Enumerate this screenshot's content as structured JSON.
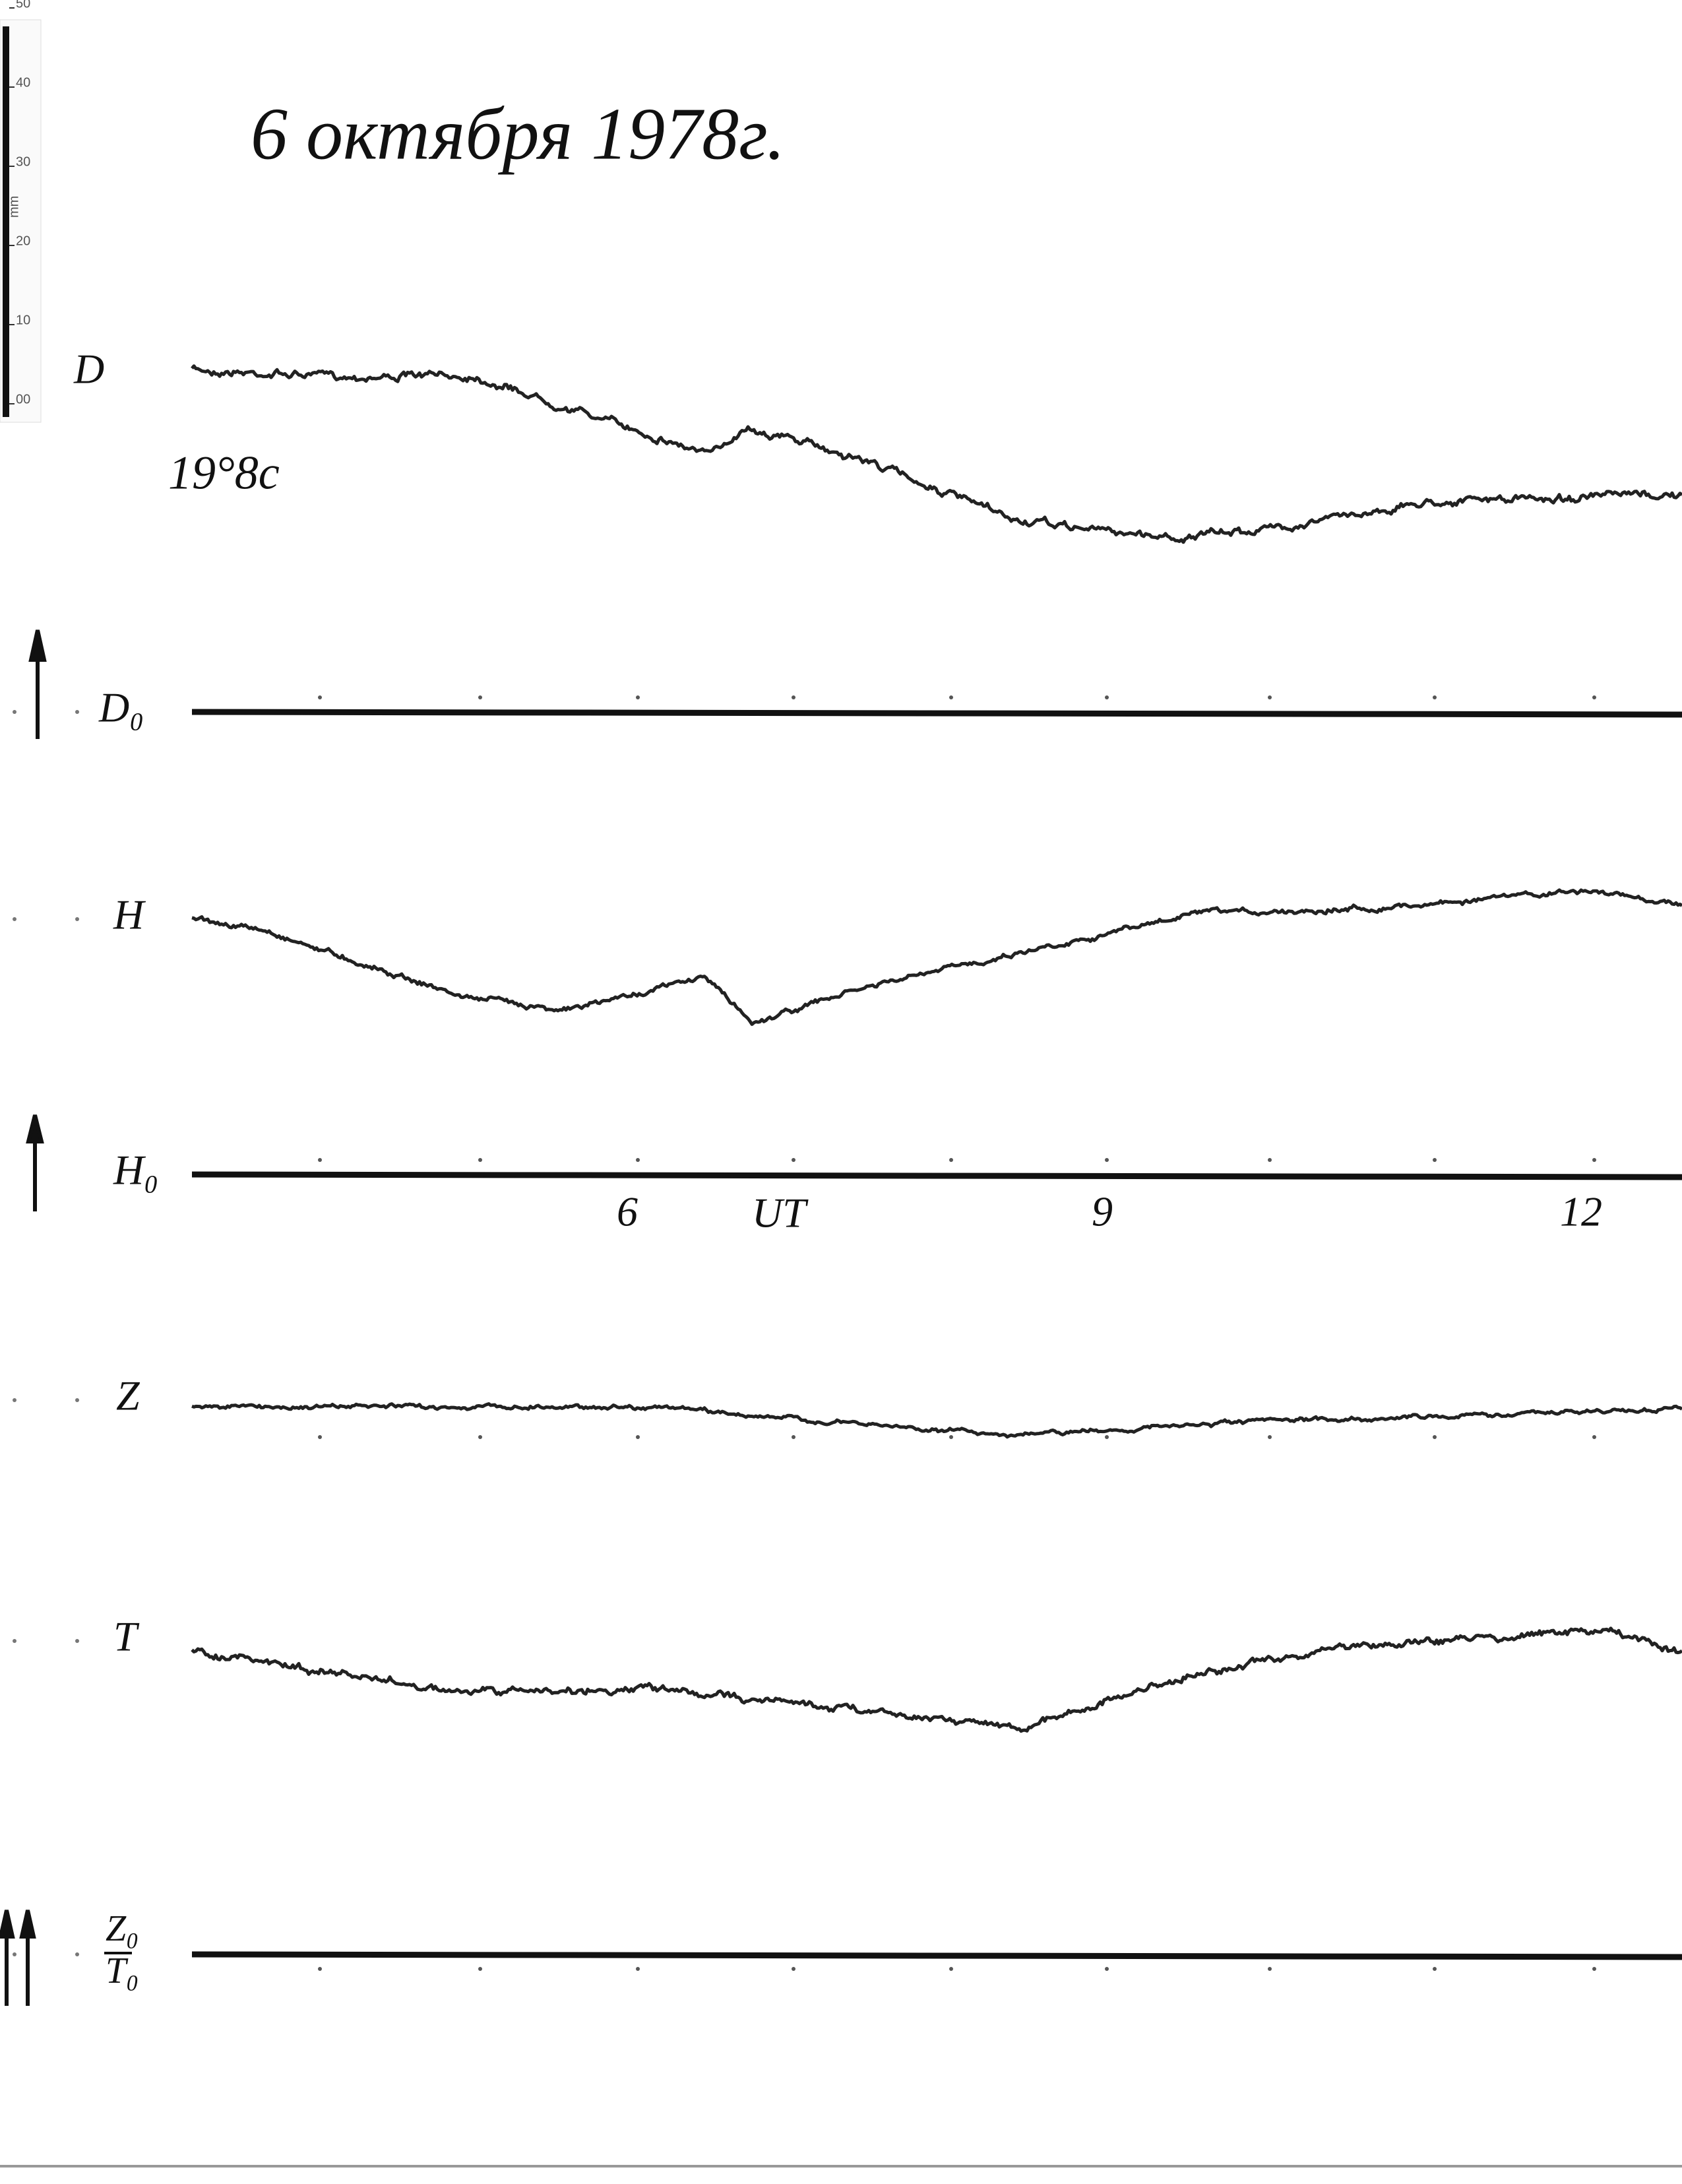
{
  "ruler": {
    "ticks": [
      "00",
      "10",
      "20",
      "30",
      "40",
      "50"
    ],
    "unit": "mm"
  },
  "title": "6 октября 1978г.",
  "traces": [
    {
      "label": "D",
      "note": "19°8c"
    },
    {
      "label": "H"
    },
    {
      "label": "Z"
    },
    {
      "label": "T"
    }
  ],
  "baselines": [
    {
      "label": "D₀"
    },
    {
      "label": "H₀"
    },
    {
      "label": "Z₀",
      "label2": "T₀"
    }
  ],
  "time_labels": [
    "6",
    "UT",
    "9",
    "12"
  ]
}
